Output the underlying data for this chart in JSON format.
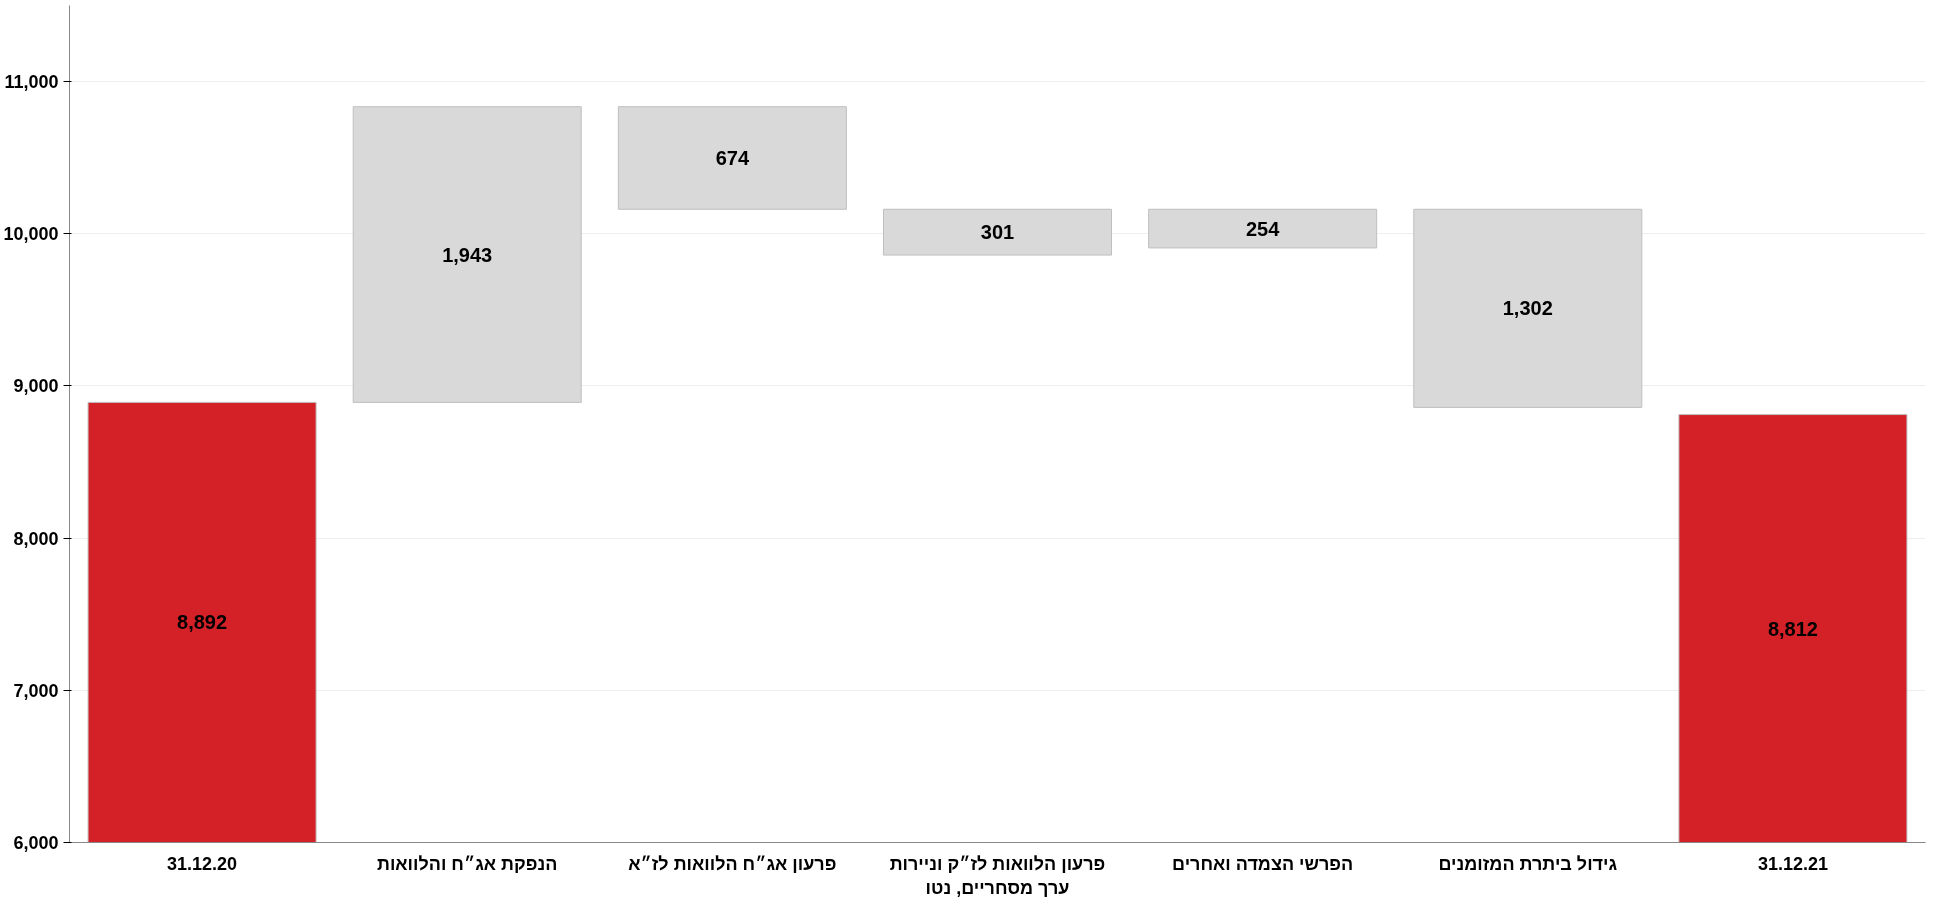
{
  "chart_data": {
    "type": "bar",
    "categories": [
      "31.12.20",
      "הנפקת אג״ח והלוואות",
      "פרעון אג״ח הלוואות לז״א",
      "פרעון הלוואות לז״ק וניירות ערך מסחריים, נטו",
      "הפרשי הצמדה ואחרים",
      "גידול ביתרת המזומנים",
      "31.12.21"
    ],
    "values": [
      8892,
      1943,
      674,
      301,
      254,
      1302,
      8812
    ],
    "base": [
      null,
      8892,
      10161,
      9860,
      9907,
      8859,
      null
    ],
    "colors": [
      "#d42027",
      "#d9d9d9",
      "#d9d9d9",
      "#d9d9d9",
      "#d9d9d9",
      "#d9d9d9",
      "#d42027"
    ],
    "value_labels": [
      "8,892",
      "1,943",
      "674",
      "301",
      "254",
      "1,302",
      "8,812"
    ],
    "ylim": [
      6000,
      11500
    ],
    "yticks": [
      {
        "value": 6000,
        "label": "6,000"
      },
      {
        "value": 7000,
        "label": "7,000"
      },
      {
        "value": 8000,
        "label": "8,000"
      },
      {
        "value": 9000,
        "label": "9,000"
      },
      {
        "value": 10000,
        "label": "10,000"
      },
      {
        "value": 11000,
        "label": "11,000"
      }
    ],
    "grid": "y"
  }
}
